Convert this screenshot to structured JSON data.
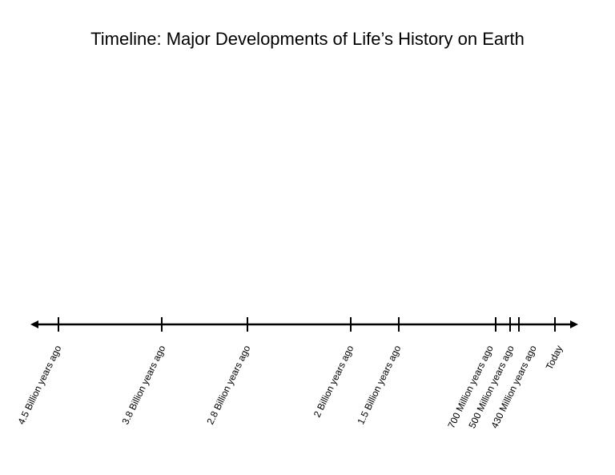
{
  "title": "Timeline:  Major Developments of Life’s History on Earth",
  "timeline": {
    "marks": [
      {
        "label": "4.5 Billion years ago"
      },
      {
        "label": "3.8 Billion years ago"
      },
      {
        "label": "2.8 Billion years ago"
      },
      {
        "label": "2 Billion years ago"
      },
      {
        "label": "1.5 Billion years ago"
      },
      {
        "label": "700 Million years ago"
      },
      {
        "label": "500 Million years ago"
      },
      {
        "label": "430 Million years ago"
      },
      {
        "label": "Today"
      }
    ]
  }
}
